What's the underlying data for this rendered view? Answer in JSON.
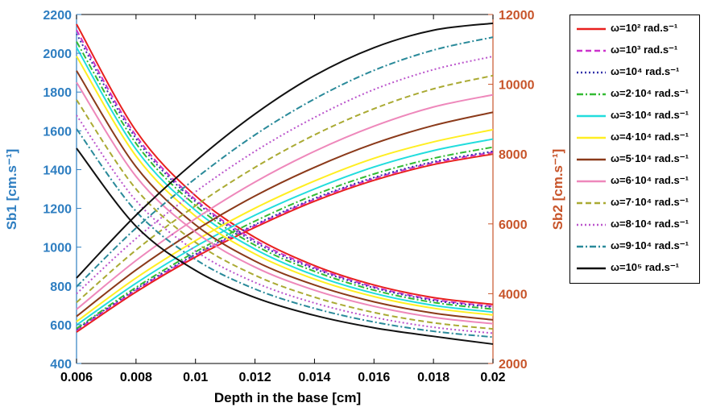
{
  "chart_data": {
    "type": "line",
    "title": "",
    "xlabel": "Depth in the base [cm]",
    "ylabel_left": "Sb1 [cm.s⁻¹]",
    "ylabel_right": "Sb2 [cm.s⁻¹]",
    "xlim": [
      0.006,
      0.02
    ],
    "ylim_left": [
      400,
      2200
    ],
    "ylim_right": [
      2000,
      12000
    ],
    "x_ticks": [
      "0.006",
      "0.008",
      "0.01",
      "0.012",
      "0.014",
      "0.016",
      "0.018",
      "0.02"
    ],
    "y_left_ticks": [
      "400",
      "600",
      "800",
      "1000",
      "1200",
      "1400",
      "1600",
      "1800",
      "2000",
      "2200"
    ],
    "y_right_ticks": [
      "2000",
      "4000",
      "6000",
      "8000",
      "10000",
      "12000"
    ],
    "left_axis_color": "#2E7EC1",
    "right_axis_color": "#C8552B",
    "grid": false,
    "legend_position": "outside-right",
    "x": [
      0.006,
      0.008,
      0.01,
      0.012,
      0.014,
      0.016,
      0.018,
      0.02
    ],
    "series": [
      {
        "name": "ω=10² rad.s⁻¹",
        "color": "#E8201E",
        "dash": "solid",
        "sb1": [
          2150,
          1600,
          1265,
          1050,
          905,
          805,
          740,
          705
        ],
        "sb2": [
          2900,
          4050,
          5050,
          5900,
          6650,
          7250,
          7700,
          8000
        ]
      },
      {
        "name": "ω=10³ rad.s⁻¹",
        "color": "#CC33CC",
        "dash": "dash",
        "sb1": [
          2120,
          1575,
          1245,
          1035,
          895,
          795,
          730,
          695
        ],
        "sb2": [
          2950,
          4100,
          5100,
          5950,
          6700,
          7300,
          7750,
          8050
        ]
      },
      {
        "name": "ω=10⁴ rad.s⁻¹",
        "color": "#3333AA",
        "dash": "dot",
        "sb1": [
          2100,
          1560,
          1235,
          1025,
          888,
          790,
          725,
          690
        ],
        "sb2": [
          2980,
          4130,
          5130,
          5980,
          6730,
          7330,
          7780,
          8080
        ]
      },
      {
        "name": "ω=2·10⁴ rad.s⁻¹",
        "color": "#33BB33",
        "dash": "dashdot",
        "sb1": [
          2060,
          1535,
          1215,
          1010,
          875,
          778,
          715,
          680
        ],
        "sb2": [
          3000,
          4180,
          5200,
          6080,
          6830,
          7430,
          7880,
          8200
        ]
      },
      {
        "name": "ω=3·10⁴ rad.s⁻¹",
        "color": "#22DDDD",
        "dash": "solid",
        "sb1": [
          2030,
          1505,
          1190,
          990,
          855,
          762,
          700,
          665
        ],
        "sb2": [
          3100,
          4300,
          5350,
          6250,
          7000,
          7630,
          8100,
          8430
        ]
      },
      {
        "name": "ω=4·10⁴ rad.s⁻¹",
        "color": "#FFEE22",
        "dash": "solid",
        "sb1": [
          1985,
          1470,
          1160,
          965,
          835,
          745,
          685,
          650
        ],
        "sb2": [
          3200,
          4450,
          5520,
          6450,
          7230,
          7880,
          8350,
          8700
        ]
      },
      {
        "name": "ω=5·10⁴ rad.s⁻¹",
        "color": "#8B3A1A",
        "dash": "solid",
        "sb1": [
          1910,
          1415,
          1115,
          928,
          805,
          718,
          660,
          625
        ],
        "sb2": [
          3350,
          4680,
          5820,
          6800,
          7620,
          8300,
          8820,
          9200
        ]
      },
      {
        "name": "ω=6·10⁴ rad.s⁻¹",
        "color": "#EE88BB",
        "dash": "solid",
        "sb1": [
          1850,
          1365,
          1078,
          897,
          778,
          695,
          638,
          605
        ],
        "sb2": [
          3550,
          4950,
          6150,
          7200,
          8080,
          8800,
          9350,
          9700
        ]
      },
      {
        "name": "ω=7·10⁴ rad.s⁻¹",
        "color": "#AAAA33",
        "dash": "dash",
        "sb1": [
          1760,
          1300,
          1025,
          855,
          742,
          663,
          610,
          578
        ],
        "sb2": [
          3750,
          5250,
          6520,
          7620,
          8550,
          9300,
          9870,
          10250
        ]
      },
      {
        "name": "ω=8·10⁴ rad.s⁻¹",
        "color": "#BB55CC",
        "dash": "dot",
        "sb1": [
          1680,
          1240,
          980,
          818,
          712,
          638,
          587,
          556
        ],
        "sb2": [
          4000,
          5580,
          6920,
          8080,
          9050,
          9850,
          10420,
          10800
        ]
      },
      {
        "name": "ω=9·10⁴ rad.s⁻¹",
        "color": "#2A8A9A",
        "dash": "dashdot",
        "sb1": [
          1610,
          1185,
          937,
          784,
          684,
          614,
          566,
          536
        ],
        "sb2": [
          4200,
          5880,
          7300,
          8550,
          9580,
          10400,
          10980,
          11350
        ]
      },
      {
        "name": "ω=10⁵ rad.s⁻¹",
        "color": "#111111",
        "dash": "solid",
        "sb1": [
          1510,
          1108,
          880,
          740,
          648,
          584,
          540,
          500
        ],
        "sb2": [
          4450,
          6250,
          7800,
          9150,
          10250,
          11050,
          11550,
          11750
        ]
      }
    ]
  }
}
